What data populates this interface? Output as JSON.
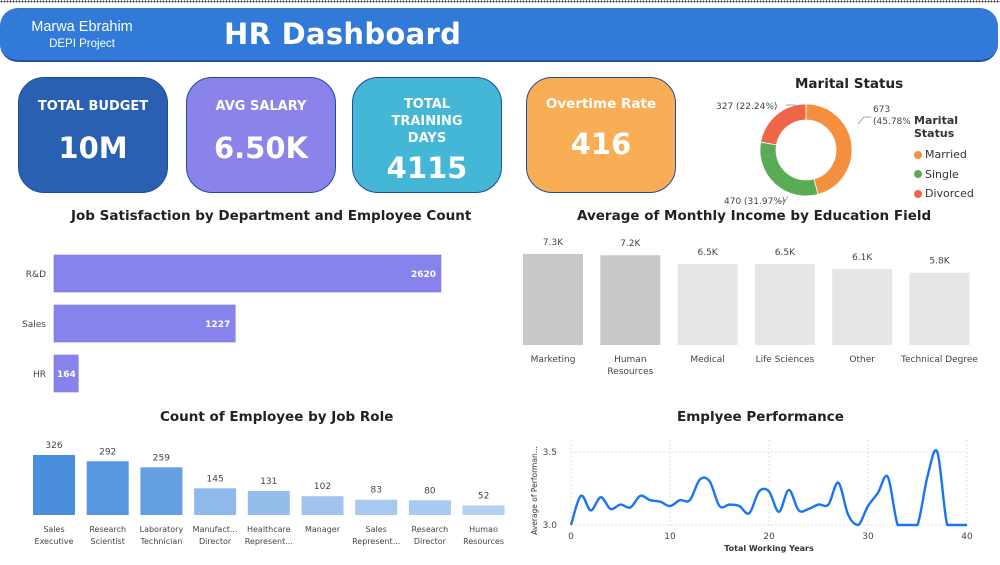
{
  "header": {
    "author": "Marwa Ebrahim",
    "project": "DEPI Project",
    "title": "HR Dashboard",
    "color": "#317ad7"
  },
  "kpis": [
    {
      "label": "TOTAL BUDGET",
      "value": "10M",
      "color": "#2a60b2"
    },
    {
      "label": "AVG SALARY",
      "value": "6.50K",
      "color": "#8a84ea"
    },
    {
      "label": "TOTAL TRAINING DAYS",
      "value": "4115",
      "color": "#44b6d6"
    },
    {
      "label": "Overtime Rate",
      "value": "416",
      "color": "#f9ad55"
    }
  ],
  "chart_data": [
    {
      "id": "marital",
      "type": "pie",
      "title": "Marital Status",
      "legend_title": "Marital Status",
      "legend_position": "right",
      "donut": true,
      "slices": [
        {
          "label": "Married",
          "value": 673,
          "percent": "45.78%",
          "data_label": "673 (45.78%)",
          "color": "#f58f3e"
        },
        {
          "label": "Single",
          "value": 470,
          "percent": "31.97%",
          "data_label": "470 (31.97%)",
          "color": "#5aab55"
        },
        {
          "label": "Divorced",
          "value": 327,
          "percent": "22.24%",
          "data_label": "327 (22.24%)",
          "color": "#ee6647"
        }
      ]
    },
    {
      "id": "dept",
      "type": "bar",
      "orientation": "horizontal",
      "title": "Job Satisfaction by Department and Employee Count",
      "categories": [
        "R&D",
        "Sales",
        "HR"
      ],
      "values": [
        2620,
        1227,
        164
      ],
      "data_labels": [
        "2620",
        "1227",
        "164"
      ],
      "xlim": [
        0,
        2620
      ],
      "color": "#8883ec"
    },
    {
      "id": "education",
      "type": "bar",
      "title": "Average of Monthly Income by Education Field",
      "categories": [
        "Marketing",
        "Human Resources",
        "Medical",
        "Life Sciences",
        "Other",
        "Technical Degree"
      ],
      "category_lines": [
        [
          "Marketing"
        ],
        [
          "Human",
          "Resources"
        ],
        [
          "Medical"
        ],
        [
          "Life Sciences"
        ],
        [
          "Other"
        ],
        [
          "Technical Degree"
        ]
      ],
      "values": [
        7300,
        7200,
        6500,
        6500,
        6100,
        5800
      ],
      "data_labels": [
        "7.3K",
        "7.2K",
        "6.5K",
        "6.5K",
        "6.1K",
        "5.8K"
      ],
      "ylim": [
        0,
        7300
      ],
      "colors": [
        "#c8c8c8",
        "#c8c8c8",
        "#e6e6e6",
        "#e6e6e6",
        "#e6e6e6",
        "#e6e6e6"
      ]
    },
    {
      "id": "jobrole",
      "type": "bar",
      "title": "Count of Employee by Job Role",
      "categories": [
        "Sales Executive",
        "Research Scientist",
        "Laboratory Technician",
        "Manufacturing Director",
        "Healthcare Representative",
        "Manager",
        "Sales Representative",
        "Research Director",
        "Human Resources"
      ],
      "category_lines": [
        [
          "Sales",
          "Executive"
        ],
        [
          "Research",
          "Scientist"
        ],
        [
          "Laboratory",
          "Technician"
        ],
        [
          "Manufact...",
          "Director"
        ],
        [
          "Healthcare",
          "Represent..."
        ],
        [
          "Manager"
        ],
        [
          "Sales",
          "Represent..."
        ],
        [
          "Research",
          "Director"
        ],
        [
          "Human",
          "Resources"
        ]
      ],
      "values": [
        326,
        292,
        259,
        145,
        131,
        102,
        83,
        80,
        52
      ],
      "data_labels": [
        "326",
        "292",
        "259",
        "145",
        "131",
        "102",
        "83",
        "80",
        "52"
      ],
      "ylim": [
        0,
        326
      ],
      "color_max": "#4a8fdc",
      "color_min": "#b3d0f2"
    },
    {
      "id": "performance",
      "type": "line",
      "title": "Emplyee Performance",
      "xlabel": "Total Working Years",
      "ylabel": "Average of Performan...",
      "xlim": [
        0,
        40
      ],
      "ylim": [
        3.0,
        3.6
      ],
      "xticks": [
        0,
        10,
        20,
        30,
        40
      ],
      "yticks": [
        3.0,
        3.5
      ],
      "ytick_labels": [
        "3.0",
        "3.5"
      ],
      "grid": true,
      "color": "#1a75f0",
      "x": [
        0,
        1,
        2,
        3,
        4,
        5,
        6,
        7,
        8,
        9,
        10,
        11,
        12,
        13,
        14,
        15,
        16,
        17,
        18,
        19,
        20,
        21,
        22,
        23,
        24,
        25,
        26,
        27,
        28,
        29,
        30,
        31,
        32,
        33,
        34,
        35,
        36,
        37,
        38,
        39,
        40
      ],
      "y": [
        3.0,
        3.2,
        3.1,
        3.19,
        3.11,
        3.14,
        3.12,
        3.2,
        3.17,
        3.16,
        3.13,
        3.17,
        3.17,
        3.31,
        3.3,
        3.13,
        3.14,
        3.13,
        3.08,
        3.23,
        3.23,
        3.09,
        3.24,
        3.1,
        3.11,
        3.14,
        3.14,
        3.29,
        3.07,
        3.0,
        3.13,
        3.22,
        3.33,
        3.0,
        3.0,
        3.0,
        3.33,
        3.5,
        3.0,
        3.0,
        3.0
      ]
    }
  ]
}
